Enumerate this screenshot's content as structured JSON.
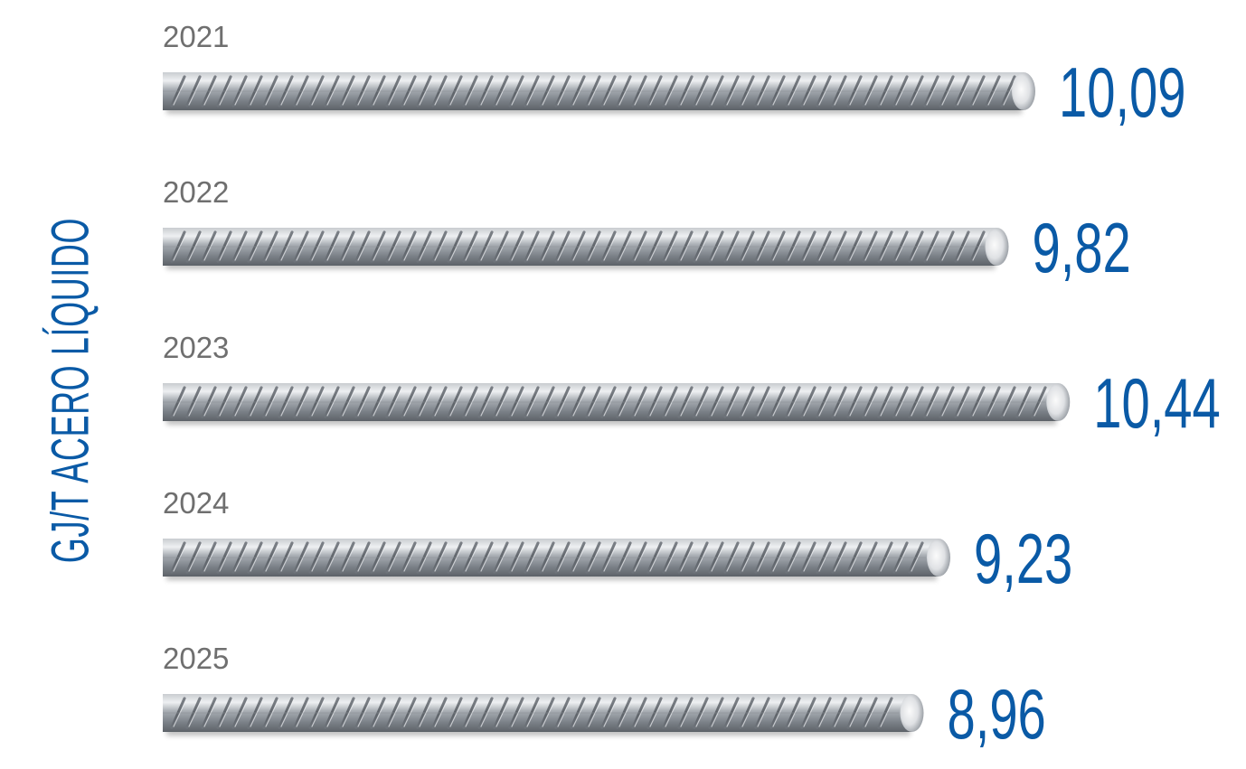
{
  "chart_data": {
    "type": "bar",
    "orientation": "horizontal",
    "ylabel": "GJ/T ACERO LÍQUIDO",
    "categories": [
      "2021",
      "2022",
      "2023",
      "2024",
      "2025"
    ],
    "values": [
      10.09,
      9.82,
      10.44,
      9.23,
      8.96
    ],
    "value_labels": [
      "10,09",
      "9,82",
      "10,44",
      "9,23",
      "8,96"
    ],
    "bar_style": "steel rebar",
    "colors": {
      "value_text": "#0a5aa6",
      "year_text": "#6f6f6f",
      "rebar": "#9a9ea4"
    }
  }
}
